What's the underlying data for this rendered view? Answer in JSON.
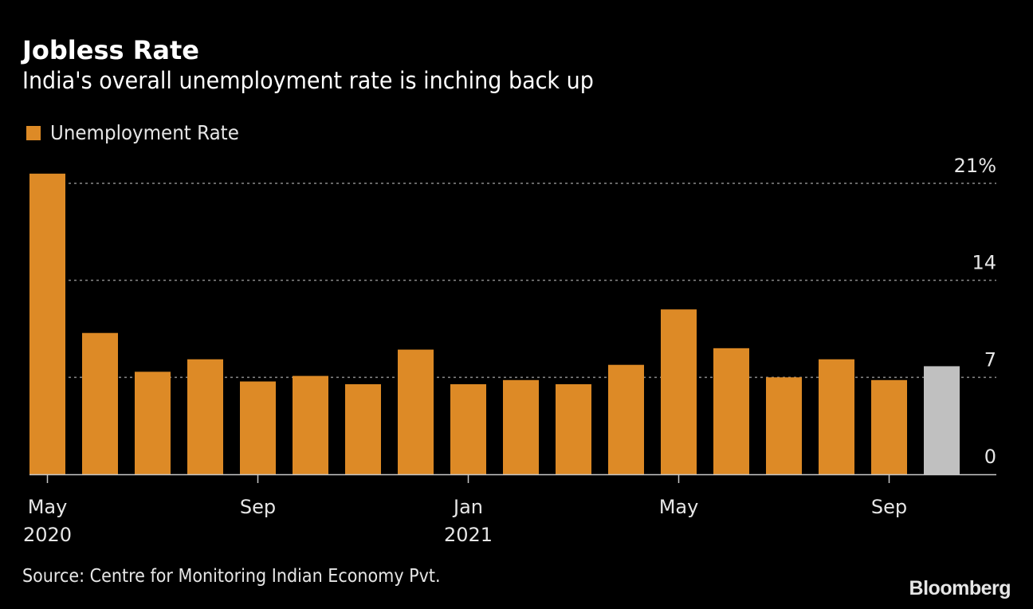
{
  "chart_data": {
    "type": "bar",
    "title": "Jobless Rate",
    "subtitle": "India's overall unemployment rate is inching back up",
    "legend": [
      {
        "label": "Unemployment Rate",
        "color": "#dd8a26"
      }
    ],
    "legend_position": "top-left",
    "categories": [
      "May 2020",
      "Jun 2020",
      "Jul 2020",
      "Aug 2020",
      "Sep 2020",
      "Oct 2020",
      "Nov 2020",
      "Dec 2020",
      "Jan 2021",
      "Feb 2021",
      "Mar 2021",
      "Apr 2021",
      "May 2021",
      "Jun 2021",
      "Jul 2021",
      "Aug 2021",
      "Sep 2021",
      "Oct 2021"
    ],
    "series": [
      {
        "name": "Unemployment Rate",
        "values": [
          21.7,
          10.2,
          7.4,
          8.3,
          6.7,
          7.1,
          6.5,
          9.0,
          6.5,
          6.8,
          6.5,
          7.9,
          11.9,
          9.1,
          7.0,
          8.3,
          6.8,
          7.8
        ]
      }
    ],
    "highlight_last": true,
    "bar_color": "#dd8a26",
    "highlight_color": "#c0c0c0",
    "ylim": [
      0,
      21
    ],
    "yticks": [
      {
        "value": 0,
        "label": "0"
      },
      {
        "value": 7,
        "label": "7"
      },
      {
        "value": 14,
        "label": "14"
      },
      {
        "value": 21,
        "label": "21%"
      }
    ],
    "xticks": [
      {
        "index": 0,
        "label": "May",
        "sublabel": "2020"
      },
      {
        "index": 4,
        "label": "Sep",
        "sublabel": ""
      },
      {
        "index": 8,
        "label": "Jan",
        "sublabel": "2021"
      },
      {
        "index": 12,
        "label": "May",
        "sublabel": ""
      },
      {
        "index": 16,
        "label": "Sep",
        "sublabel": ""
      }
    ],
    "grid": true,
    "xlabel": "",
    "ylabel": ""
  },
  "footer": {
    "source": "Source: Centre for Monitoring Indian Economy Pvt.",
    "logo": "Bloomberg"
  }
}
